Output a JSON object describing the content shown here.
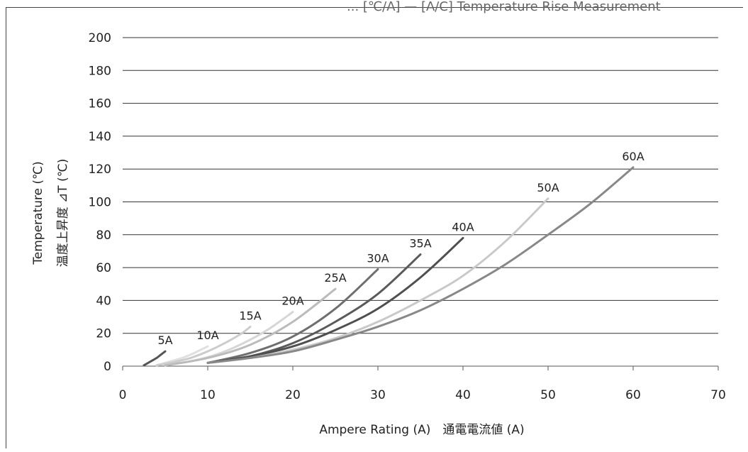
{
  "chart_data": {
    "type": "line",
    "title": "... [℃/A] — [A/C] Temperature Rise Measurement",
    "xlabel": "Ampere Rating (A)　通電電流値 (A)",
    "ylabel_en": "Temperature (℃)",
    "ylabel_jp": "温度上昇度 ⊿T (℃)",
    "xlim": [
      0,
      70
    ],
    "ylim": [
      0,
      200
    ],
    "xticks": [
      0,
      10,
      20,
      30,
      40,
      50,
      60,
      70
    ],
    "yticks": [
      0,
      20,
      40,
      60,
      80,
      100,
      120,
      140,
      160,
      180,
      200
    ],
    "grid": "horizontal",
    "series": [
      {
        "name": "5A",
        "color": "#555555",
        "x": [
          2.5,
          3.0,
          3.5,
          4.0,
          4.5,
          5.0
        ],
        "y": [
          0.5,
          2,
          3.5,
          5,
          7,
          9
        ]
      },
      {
        "name": "10A",
        "color": "#e0e0e0",
        "x": [
          4,
          5,
          6,
          7,
          8,
          9,
          10
        ],
        "y": [
          0.5,
          2,
          3.5,
          5,
          7,
          9.5,
          12
        ]
      },
      {
        "name": "15A",
        "color": "#cccccc",
        "x": [
          4,
          6,
          8,
          10,
          12,
          14,
          15
        ],
        "y": [
          0.5,
          2.5,
          5,
          9,
          14,
          20,
          24
        ]
      },
      {
        "name": "20A",
        "color": "#d6d6d6",
        "x": [
          5,
          8,
          11,
          14,
          17,
          20
        ],
        "y": [
          0.5,
          3,
          7,
          13.5,
          22,
          33
        ]
      },
      {
        "name": "25A",
        "color": "#bbbbbb",
        "x": [
          5,
          10,
          15,
          20,
          25
        ],
        "y": [
          0.5,
          5,
          13,
          27,
          47
        ]
      },
      {
        "name": "30A",
        "color": "#6f6f6f",
        "x": [
          10,
          15,
          20,
          25,
          30
        ],
        "y": [
          2,
          8,
          18,
          35,
          59
        ]
      },
      {
        "name": "35A",
        "color": "#5a5a5a",
        "x": [
          10,
          15,
          20,
          25,
          30,
          35
        ],
        "y": [
          2,
          6,
          14,
          27,
          44,
          68
        ]
      },
      {
        "name": "40A",
        "color": "#4f4f4f",
        "x": [
          10,
          15,
          20,
          25,
          30,
          35,
          40
        ],
        "y": [
          2,
          6,
          12,
          22,
          35,
          54,
          78
        ]
      },
      {
        "name": "50A",
        "color": "#c9c9c9",
        "x": [
          10,
          15,
          20,
          25,
          30,
          35,
          40,
          45,
          50
        ],
        "y": [
          2,
          5,
          10,
          17,
          27,
          40,
          55,
          76,
          102
        ]
      },
      {
        "name": "60A",
        "color": "#888888",
        "x": [
          10,
          15,
          20,
          25,
          30,
          35,
          40,
          45,
          50,
          55,
          60
        ],
        "y": [
          2,
          5,
          9,
          16,
          24,
          34,
          47,
          62,
          80,
          99,
          121
        ]
      }
    ]
  }
}
